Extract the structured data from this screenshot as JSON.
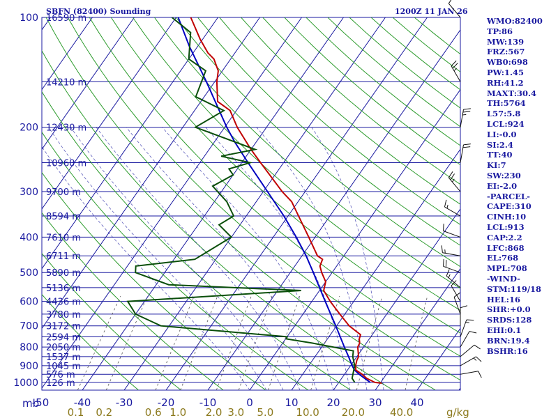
{
  "header": {
    "station": "SBFN (82400) Sounding",
    "time": "1200Z 11 JAN 26"
  },
  "axis_labels": {
    "mb": "mb",
    "gkg": "g/kg"
  },
  "indices": [
    "WMO:82400",
    "TP:86",
    "MW:139",
    "FRZ:567",
    "WB0:698",
    "PW:1.45",
    "RH:41.2",
    "MAXT:30.4",
    "TH:5764",
    "L57:5.8",
    "LCL:924",
    "LI:-0.0",
    "SI:2.4",
    "TT:40",
    "KI:7",
    "SW:230",
    "EI:-2.0",
    "-PARCEL-",
    "CAPE:310",
    "CINH:10",
    "LCL:913",
    "CAP:2.2",
    "LFC:868",
    "EL:768",
    "MPL:708",
    "-WIND-",
    "STM:119/18",
    "HEL:16",
    "SHR:+0.0",
    "SRDS:128",
    "EHI:0.1",
    "BRN:19.4",
    "BSHR:16"
  ],
  "colors": {
    "frame": "#1a1aa0",
    "isobar": "#1a1aa0",
    "isotherm": "#1a1aa0",
    "dry_adiabat": "#2e9c2e",
    "moist_adiabat": "#1a1aa0",
    "mixing_ratio": "#555555",
    "mixing_label": "#8c7a1e",
    "temperature": "#c00000",
    "dewpoint": "#0a4f0a",
    "parcel": "#0000c0",
    "wind_barbs": "#111111"
  },
  "chart_data": {
    "type": "skew-t",
    "title": "SBFN (82400) Sounding",
    "ylabel": "mb",
    "pressure_levels": [
      {
        "p": 100,
        "height": "16590 m"
      },
      {
        "p": 150,
        "height": "14210 m"
      },
      {
        "p": 200,
        "height": "12430 m"
      },
      {
        "p": 250,
        "height": "10960 m"
      },
      {
        "p": 300,
        "height": "9700 m"
      },
      {
        "p": 350,
        "height": "8594 m"
      },
      {
        "p": 400,
        "height": "7610 m"
      },
      {
        "p": 450,
        "height": "6711 m"
      },
      {
        "p": 500,
        "height": "5890 m"
      },
      {
        "p": 550,
        "height": "5136 m"
      },
      {
        "p": 600,
        "height": "4436 m"
      },
      {
        "p": 650,
        "height": "3780 m"
      },
      {
        "p": 700,
        "height": "3172 m"
      },
      {
        "p": 750,
        "height": "2594 m"
      },
      {
        "p": 800,
        "height": "2050 m"
      },
      {
        "p": 850,
        "height": "1537 m"
      },
      {
        "p": 900,
        "height": "1045 m"
      },
      {
        "p": 950,
        "height": "576 m"
      },
      {
        "p": 1000,
        "height": "126 m"
      }
    ],
    "y_tick_labels": [
      100,
      200,
      300,
      400,
      500,
      600,
      700,
      800,
      900,
      1000
    ],
    "temperature_ticks": [
      -50,
      -40,
      -30,
      -20,
      -10,
      0,
      10,
      20,
      30,
      40
    ],
    "mixing_ratio_ticks": [
      "0.1",
      "0.2",
      "0.6",
      "1.0",
      "2.0",
      "3.0",
      "5.0",
      "10.0",
      "20.0",
      "40.0"
    ],
    "temperature_profile": [
      {
        "p": 1005,
        "t": 30.4
      },
      {
        "p": 1000,
        "t": 28.6
      },
      {
        "p": 975,
        "t": 26.0
      },
      {
        "p": 950,
        "t": 24.2
      },
      {
        "p": 925,
        "t": 22.0
      },
      {
        "p": 900,
        "t": 21.2
      },
      {
        "p": 870,
        "t": 20.6
      },
      {
        "p": 850,
        "t": 20.4
      },
      {
        "p": 800,
        "t": 18.6
      },
      {
        "p": 780,
        "t": 18.4
      },
      {
        "p": 760,
        "t": 17.6
      },
      {
        "p": 740,
        "t": 17.2
      },
      {
        "p": 700,
        "t": 13.0
      },
      {
        "p": 650,
        "t": 8.8
      },
      {
        "p": 600,
        "t": 4.4
      },
      {
        "p": 560,
        "t": 1.0
      },
      {
        "p": 530,
        "t": 0.0
      },
      {
        "p": 500,
        "t": -2.5
      },
      {
        "p": 480,
        "t": -4.0
      },
      {
        "p": 460,
        "t": -4.5
      },
      {
        "p": 450,
        "t": -6.3
      },
      {
        "p": 400,
        "t": -11.5
      },
      {
        "p": 350,
        "t": -17.5
      },
      {
        "p": 320,
        "t": -21.5
      },
      {
        "p": 300,
        "t": -25.5
      },
      {
        "p": 250,
        "t": -35.5
      },
      {
        "p": 230,
        "t": -40.0
      },
      {
        "p": 200,
        "t": -47.0
      },
      {
        "p": 180,
        "t": -51.5
      },
      {
        "p": 170,
        "t": -56.0
      },
      {
        "p": 150,
        "t": -59.5
      },
      {
        "p": 140,
        "t": -61.0
      },
      {
        "p": 130,
        "t": -64.0
      },
      {
        "p": 125,
        "t": -66.5
      },
      {
        "p": 115,
        "t": -70.5
      },
      {
        "p": 100,
        "t": -76.5
      }
    ],
    "dewpoint_profile": [
      {
        "p": 1000,
        "td": 23.8
      },
      {
        "p": 975,
        "td": 22.5
      },
      {
        "p": 925,
        "td": 21.5
      },
      {
        "p": 900,
        "td": 21.0
      },
      {
        "p": 850,
        "td": 19.0
      },
      {
        "p": 820,
        "td": 18.2
      },
      {
        "p": 780,
        "td": 7.0
      },
      {
        "p": 760,
        "td": 0.2
      },
      {
        "p": 750,
        "td": 0.0
      },
      {
        "p": 700,
        "td": -32.0
      },
      {
        "p": 650,
        "td": -40.0
      },
      {
        "p": 600,
        "td": -44.0
      },
      {
        "p": 560,
        "td": -4.4
      },
      {
        "p": 540,
        "td": -37.0
      },
      {
        "p": 500,
        "td": -47.0
      },
      {
        "p": 480,
        "td": -48.0
      },
      {
        "p": 460,
        "td": -35.0
      },
      {
        "p": 400,
        "td": -30.0
      },
      {
        "p": 370,
        "td": -35.0
      },
      {
        "p": 350,
        "td": -33.0
      },
      {
        "p": 320,
        "td": -37.0
      },
      {
        "p": 290,
        "td": -43.0
      },
      {
        "p": 270,
        "td": -40.0
      },
      {
        "p": 260,
        "td": -42.0
      },
      {
        "p": 250,
        "td": -38.0
      },
      {
        "p": 240,
        "td": -46.0
      },
      {
        "p": 230,
        "td": -39.0
      },
      {
        "p": 200,
        "td": -57.0
      },
      {
        "p": 180,
        "td": -53.0
      },
      {
        "p": 165,
        "td": -62.0
      },
      {
        "p": 140,
        "td": -64.0
      },
      {
        "p": 130,
        "td": -70.0
      },
      {
        "p": 110,
        "td": -74.0
      },
      {
        "p": 100,
        "td": -81.0
      }
    ],
    "parcel_profile": [
      {
        "p": 1000,
        "t": 27.5
      },
      {
        "p": 950,
        "t": 23.5
      },
      {
        "p": 924,
        "t": 21.6
      },
      {
        "p": 900,
        "t": 20.4
      },
      {
        "p": 850,
        "t": 18.0
      },
      {
        "p": 800,
        "t": 15.4
      },
      {
        "p": 700,
        "t": 9.8
      },
      {
        "p": 600,
        "t": 3.2
      },
      {
        "p": 500,
        "t": -4.5
      },
      {
        "p": 450,
        "t": -9.0
      },
      {
        "p": 400,
        "t": -14.5
      },
      {
        "p": 350,
        "t": -21.0
      },
      {
        "p": 300,
        "t": -29.0
      },
      {
        "p": 250,
        "t": -38.5
      },
      {
        "p": 220,
        "t": -45.0
      },
      {
        "p": 200,
        "t": -49.5
      },
      {
        "p": 150,
        "t": -62.0
      },
      {
        "p": 120,
        "t": -72.0
      },
      {
        "p": 100,
        "t": -79.5
      }
    ],
    "wind_levels": [
      {
        "p": 950,
        "dir": 80,
        "spd": 10
      },
      {
        "p": 900,
        "dir": 60,
        "spd": 15
      },
      {
        "p": 850,
        "dir": 50,
        "spd": 10
      },
      {
        "p": 800,
        "dir": 30,
        "spd": 10
      },
      {
        "p": 750,
        "dir": 20,
        "spd": 15
      },
      {
        "p": 700,
        "dir": 360,
        "spd": 10
      },
      {
        "p": 650,
        "dir": 340,
        "spd": 10
      },
      {
        "p": 600,
        "dir": 330,
        "spd": 10
      },
      {
        "p": 550,
        "dir": 310,
        "spd": 15
      },
      {
        "p": 500,
        "dir": 290,
        "spd": 20
      },
      {
        "p": 450,
        "dir": 280,
        "spd": 15
      },
      {
        "p": 400,
        "dir": 290,
        "spd": 10
      },
      {
        "p": 350,
        "dir": 300,
        "spd": 15
      },
      {
        "p": 300,
        "dir": 320,
        "spd": 25
      },
      {
        "p": 250,
        "dir": 10,
        "spd": 20
      },
      {
        "p": 200,
        "dir": 10,
        "spd": 25
      },
      {
        "p": 150,
        "dir": 330,
        "spd": 25
      },
      {
        "p": 100,
        "dir": 320,
        "spd": 10
      }
    ]
  }
}
